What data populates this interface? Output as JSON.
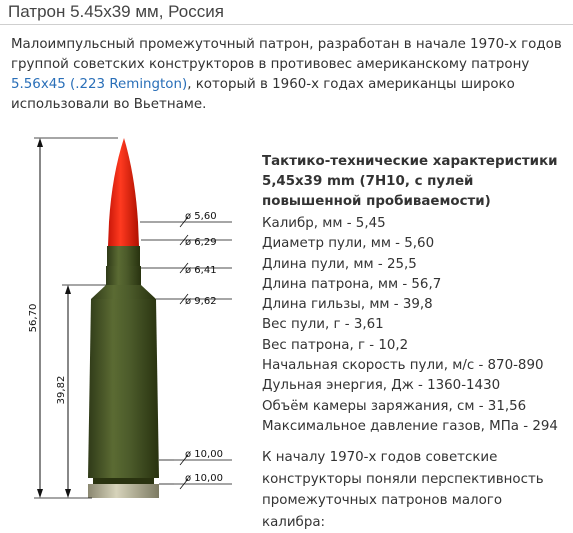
{
  "title": "Патрон 5.45x39 мм, Россия",
  "intro": {
    "text_before": "Малоимпульсный промежуточный патрон, разработан в начале 1970-х годов группой советских конструкторов в противовес американскому патрону ",
    "link": "5.56x45 (.223 Remington)",
    "text_after": ", который в 1960-х годах американцы широко использовали во Вьетнаме."
  },
  "diagram": {
    "total_length": "56,70",
    "case_length": "39,82",
    "diameters": [
      "ø 5,60",
      "ø 6,29",
      "ø 6,41",
      "ø 9,62",
      "ø 10,00",
      "ø 10,00"
    ],
    "colors": {
      "bullet_tip": "#f02010",
      "case": "#4b5a2a",
      "case_dark": "#2f3a18",
      "rim": "#b8b59a"
    }
  },
  "specs": {
    "heading": "Тактико-технические характеристики 5,45x39 mm (7Н10, с пулей повышенной пробиваемости)",
    "rows": [
      "Калибр, мм - 5,45",
      "Диаметр пули, мм - 5,60",
      "Длина пули, мм - 25,5",
      "Длина патрона, мм - 56,7",
      "Длина гильзы, мм - 39,8",
      "Вес пули, г - 3,61",
      "Вес патрона, г - 10,2",
      "Начальная скорость пули, м/с - 870-890",
      "Дульная энергия, Дж - 1360-1430",
      "Объём камеры заряжания, см - 31,56",
      "Максимальное давление газов, МПа - 294"
    ]
  },
  "outro": "К началу 1970-х годов советские конструкторы поняли перспективность промежуточных патронов малого калибра:"
}
